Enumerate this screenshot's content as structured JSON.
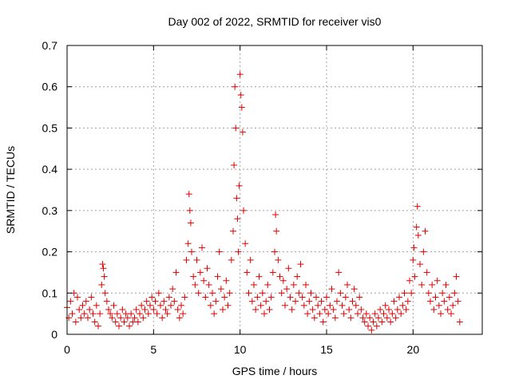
{
  "chart_data": {
    "type": "scatter",
    "title": "Day 002 of 2022, SRMTID for receiver vis0",
    "xlabel": "GPS time / hours",
    "ylabel": "SRMTID / TECUs",
    "xlim": [
      0,
      24
    ],
    "ylim": [
      0,
      0.7
    ],
    "x_ticks": [
      0,
      5,
      10,
      15,
      20
    ],
    "y_ticks": [
      0,
      0.1,
      0.2,
      0.3,
      0.4,
      0.5,
      0.6,
      0.7
    ],
    "x_tick_labels": [
      "0",
      "5",
      "10",
      "15",
      "20"
    ],
    "y_tick_labels": [
      "0",
      "0.1",
      "0.2",
      "0.3",
      "0.4",
      "0.5",
      "0.6",
      "0.7"
    ],
    "grid": true,
    "marker": "+",
    "color": "#e00000",
    "series": [
      {
        "name": "vis0",
        "points": [
          [
            0.0,
            0.065
          ],
          [
            0.1,
            0.04
          ],
          [
            0.2,
            0.08
          ],
          [
            0.3,
            0.05
          ],
          [
            0.4,
            0.1
          ],
          [
            0.5,
            0.03
          ],
          [
            0.6,
            0.09
          ],
          [
            0.7,
            0.06
          ],
          [
            0.8,
            0.04
          ],
          [
            0.9,
            0.07
          ],
          [
            1.0,
            0.05
          ],
          [
            1.1,
            0.08
          ],
          [
            1.2,
            0.04
          ],
          [
            1.3,
            0.06
          ],
          [
            1.4,
            0.09
          ],
          [
            1.5,
            0.05
          ],
          [
            1.6,
            0.03
          ],
          [
            1.7,
            0.07
          ],
          [
            1.8,
            0.02
          ],
          [
            1.9,
            0.05
          ],
          [
            2.0,
            0.12
          ],
          [
            2.05,
            0.17
          ],
          [
            2.1,
            0.16
          ],
          [
            2.15,
            0.14
          ],
          [
            2.2,
            0.1
          ],
          [
            2.3,
            0.08
          ],
          [
            2.4,
            0.06
          ],
          [
            2.5,
            0.05
          ],
          [
            2.6,
            0.04
          ],
          [
            2.7,
            0.07
          ],
          [
            2.8,
            0.03
          ],
          [
            2.9,
            0.05
          ],
          [
            3.0,
            0.02
          ],
          [
            3.1,
            0.04
          ],
          [
            3.2,
            0.06
          ],
          [
            3.3,
            0.03
          ],
          [
            3.4,
            0.05
          ],
          [
            3.5,
            0.04
          ],
          [
            3.6,
            0.02
          ],
          [
            3.7,
            0.05
          ],
          [
            3.8,
            0.03
          ],
          [
            3.9,
            0.04
          ],
          [
            4.0,
            0.06
          ],
          [
            4.1,
            0.03
          ],
          [
            4.2,
            0.05
          ],
          [
            4.3,
            0.07
          ],
          [
            4.4,
            0.04
          ],
          [
            4.5,
            0.06
          ],
          [
            4.6,
            0.08
          ],
          [
            4.7,
            0.05
          ],
          [
            4.8,
            0.07
          ],
          [
            4.9,
            0.09
          ],
          [
            5.0,
            0.06
          ],
          [
            5.1,
            0.08
          ],
          [
            5.2,
            0.05
          ],
          [
            5.3,
            0.1
          ],
          [
            5.4,
            0.07
          ],
          [
            5.5,
            0.04
          ],
          [
            5.6,
            0.08
          ],
          [
            5.7,
            0.06
          ],
          [
            5.8,
            0.05
          ],
          [
            5.9,
            0.09
          ],
          [
            6.0,
            0.07
          ],
          [
            6.1,
            0.11
          ],
          [
            6.2,
            0.08
          ],
          [
            6.3,
            0.15
          ],
          [
            6.4,
            0.06
          ],
          [
            6.5,
            0.04
          ],
          [
            6.6,
            0.07
          ],
          [
            6.7,
            0.05
          ],
          [
            6.8,
            0.09
          ],
          [
            6.9,
            0.18
          ],
          [
            7.0,
            0.22
          ],
          [
            7.05,
            0.34
          ],
          [
            7.1,
            0.3
          ],
          [
            7.15,
            0.27
          ],
          [
            7.2,
            0.2
          ],
          [
            7.3,
            0.14
          ],
          [
            7.4,
            0.12
          ],
          [
            7.5,
            0.18
          ],
          [
            7.6,
            0.1
          ],
          [
            7.7,
            0.15
          ],
          [
            7.8,
            0.21
          ],
          [
            7.9,
            0.13
          ],
          [
            8.0,
            0.09
          ],
          [
            8.1,
            0.16
          ],
          [
            8.2,
            0.12
          ],
          [
            8.3,
            0.07
          ],
          [
            8.4,
            0.1
          ],
          [
            8.5,
            0.05
          ],
          [
            8.6,
            0.08
          ],
          [
            8.7,
            0.14
          ],
          [
            8.8,
            0.2
          ],
          [
            8.9,
            0.11
          ],
          [
            9.0,
            0.06
          ],
          [
            9.1,
            0.09
          ],
          [
            9.2,
            0.13
          ],
          [
            9.3,
            0.07
          ],
          [
            9.4,
            0.1
          ],
          [
            9.5,
            0.18
          ],
          [
            9.6,
            0.25
          ],
          [
            9.65,
            0.41
          ],
          [
            9.7,
            0.6
          ],
          [
            9.75,
            0.5
          ],
          [
            9.8,
            0.33
          ],
          [
            9.85,
            0.28
          ],
          [
            9.9,
            0.2
          ],
          [
            9.95,
            0.36
          ],
          [
            10.0,
            0.63
          ],
          [
            10.05,
            0.58
          ],
          [
            10.1,
            0.55
          ],
          [
            10.15,
            0.49
          ],
          [
            10.2,
            0.3
          ],
          [
            10.3,
            0.22
          ],
          [
            10.4,
            0.15
          ],
          [
            10.5,
            0.1
          ],
          [
            10.6,
            0.18
          ],
          [
            10.7,
            0.08
          ],
          [
            10.8,
            0.12
          ],
          [
            10.9,
            0.06
          ],
          [
            11.0,
            0.09
          ],
          [
            11.1,
            0.14
          ],
          [
            11.2,
            0.07
          ],
          [
            11.3,
            0.1
          ],
          [
            11.4,
            0.05
          ],
          [
            11.5,
            0.08
          ],
          [
            11.6,
            0.12
          ],
          [
            11.7,
            0.06
          ],
          [
            11.8,
            0.09
          ],
          [
            11.9,
            0.15
          ],
          [
            12.0,
            0.2
          ],
          [
            12.05,
            0.29
          ],
          [
            12.1,
            0.25
          ],
          [
            12.2,
            0.18
          ],
          [
            12.3,
            0.14
          ],
          [
            12.4,
            0.1
          ],
          [
            12.5,
            0.13
          ],
          [
            12.6,
            0.07
          ],
          [
            12.7,
            0.11
          ],
          [
            12.8,
            0.16
          ],
          [
            12.9,
            0.09
          ],
          [
            13.0,
            0.06
          ],
          [
            13.1,
            0.12
          ],
          [
            13.2,
            0.08
          ],
          [
            13.3,
            0.14
          ],
          [
            13.4,
            0.1
          ],
          [
            13.5,
            0.17
          ],
          [
            13.6,
            0.09
          ],
          [
            13.7,
            0.07
          ],
          [
            13.8,
            0.12
          ],
          [
            13.9,
            0.05
          ],
          [
            14.0,
            0.08
          ],
          [
            14.1,
            0.1
          ],
          [
            14.2,
            0.06
          ],
          [
            14.3,
            0.04
          ],
          [
            14.4,
            0.09
          ],
          [
            14.5,
            0.07
          ],
          [
            14.6,
            0.05
          ],
          [
            14.7,
            0.08
          ],
          [
            14.8,
            0.03
          ],
          [
            14.9,
            0.06
          ],
          [
            15.0,
            0.09
          ],
          [
            15.1,
            0.05
          ],
          [
            15.2,
            0.07
          ],
          [
            15.3,
            0.11
          ],
          [
            15.4,
            0.06
          ],
          [
            15.5,
            0.04
          ],
          [
            15.6,
            0.08
          ],
          [
            15.7,
            0.15
          ],
          [
            15.8,
            0.1
          ],
          [
            15.9,
            0.07
          ],
          [
            16.0,
            0.05
          ],
          [
            16.1,
            0.09
          ],
          [
            16.2,
            0.12
          ],
          [
            16.3,
            0.06
          ],
          [
            16.4,
            0.04
          ],
          [
            16.5,
            0.08
          ],
          [
            16.6,
            0.11
          ],
          [
            16.7,
            0.07
          ],
          [
            16.8,
            0.05
          ],
          [
            16.9,
            0.09
          ],
          [
            17.0,
            0.06
          ],
          [
            17.1,
            0.04
          ],
          [
            17.2,
            0.03
          ],
          [
            17.3,
            0.05
          ],
          [
            17.4,
            0.02
          ],
          [
            17.5,
            0.04
          ],
          [
            17.6,
            0.01
          ],
          [
            17.7,
            0.03
          ],
          [
            17.8,
            0.05
          ],
          [
            17.9,
            0.02
          ],
          [
            18.0,
            0.04
          ],
          [
            18.1,
            0.06
          ],
          [
            18.2,
            0.03
          ],
          [
            18.3,
            0.05
          ],
          [
            18.4,
            0.07
          ],
          [
            18.5,
            0.04
          ],
          [
            18.6,
            0.06
          ],
          [
            18.7,
            0.03
          ],
          [
            18.8,
            0.05
          ],
          [
            18.9,
            0.08
          ],
          [
            19.0,
            0.04
          ],
          [
            19.1,
            0.06
          ],
          [
            19.2,
            0.09
          ],
          [
            19.3,
            0.05
          ],
          [
            19.4,
            0.07
          ],
          [
            19.5,
            0.1
          ],
          [
            19.6,
            0.06
          ],
          [
            19.7,
            0.08
          ],
          [
            19.8,
            0.13
          ],
          [
            19.9,
            0.1
          ],
          [
            20.0,
            0.18
          ],
          [
            20.05,
            0.21
          ],
          [
            20.1,
            0.14
          ],
          [
            20.2,
            0.26
          ],
          [
            20.25,
            0.31
          ],
          [
            20.3,
            0.24
          ],
          [
            20.4,
            0.17
          ],
          [
            20.5,
            0.12
          ],
          [
            20.6,
            0.2
          ],
          [
            20.7,
            0.25
          ],
          [
            20.8,
            0.15
          ],
          [
            20.9,
            0.1
          ],
          [
            21.0,
            0.08
          ],
          [
            21.1,
            0.12
          ],
          [
            21.2,
            0.06
          ],
          [
            21.3,
            0.09
          ],
          [
            21.4,
            0.13
          ],
          [
            21.5,
            0.07
          ],
          [
            21.6,
            0.05
          ],
          [
            21.7,
            0.1
          ],
          [
            21.8,
            0.08
          ],
          [
            21.9,
            0.12
          ],
          [
            22.0,
            0.06
          ],
          [
            22.1,
            0.09
          ],
          [
            22.2,
            0.05
          ],
          [
            22.3,
            0.07
          ],
          [
            22.4,
            0.1
          ],
          [
            22.5,
            0.14
          ],
          [
            22.6,
            0.08
          ],
          [
            22.7,
            0.03
          ]
        ]
      }
    ]
  }
}
